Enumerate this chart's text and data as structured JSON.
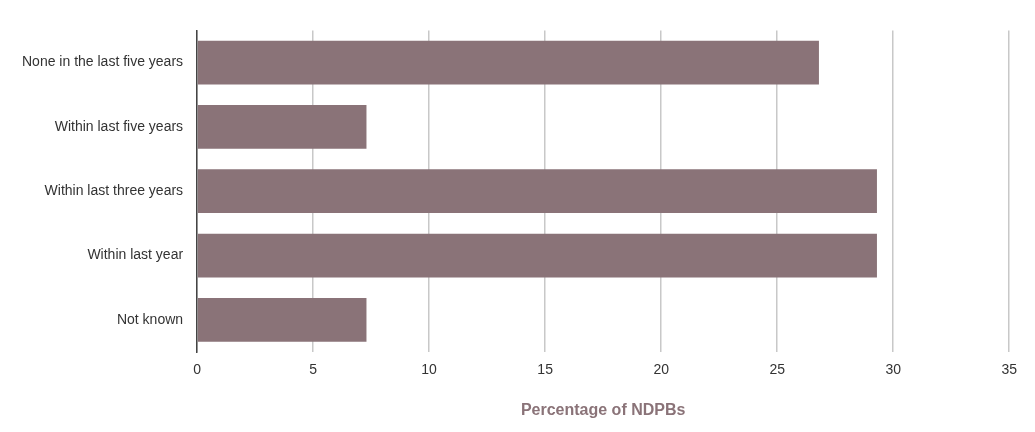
{
  "chart_data": {
    "type": "bar",
    "orientation": "horizontal",
    "categories": [
      "None in the last five years",
      "Within last five years",
      "Within last three years",
      "Within last year",
      "Not known"
    ],
    "values": [
      26.8,
      7.3,
      29.3,
      29.3,
      7.3
    ],
    "color": "#8a7378",
    "xlabel": "Percentage of NDPBs",
    "xlim": [
      0,
      35
    ],
    "xticks": [
      0,
      5,
      10,
      15,
      20,
      25,
      30,
      35
    ],
    "grid": "x",
    "legend": false
  }
}
